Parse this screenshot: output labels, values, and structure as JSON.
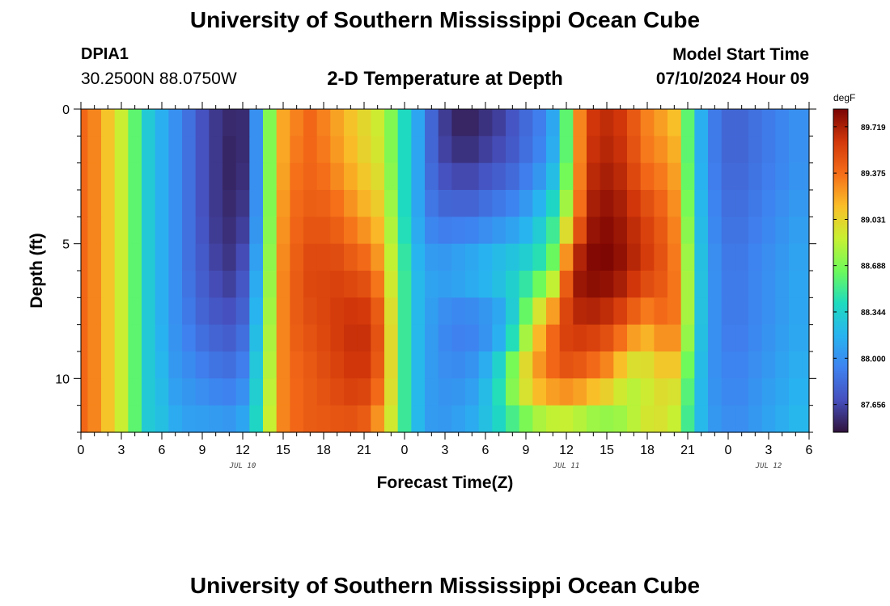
{
  "header": {
    "title": "University of Southern Mississippi Ocean Cube",
    "station_name": "DPIA1",
    "station_coords": "30.2500N  88.0750W",
    "plot_title": "2-D Temperature at Depth",
    "start_label": "Model Start Time",
    "start_value": "07/10/2024 Hour 09"
  },
  "footer": {
    "title": "University of Southern Mississippi Ocean Cube"
  },
  "chart_data": {
    "type": "heatmap",
    "title": "2-D Temperature at Depth",
    "xlabel": "Forecast Time(Z)",
    "ylabel": "Depth (ft)",
    "x_range_hours": [
      0,
      54
    ],
    "y_range_ft": [
      0,
      12
    ],
    "x_tick_labels": [
      "0",
      "3",
      "6",
      "9",
      "12",
      "15",
      "18",
      "21",
      "0",
      "3",
      "6",
      "9",
      "12",
      "15",
      "18",
      "21",
      "0",
      "3",
      "6"
    ],
    "y_ticks": [
      0,
      5,
      10
    ],
    "date_labels": [
      {
        "hour": 12,
        "text": "JUL 10"
      },
      {
        "hour": 36,
        "text": "JUL 11"
      },
      {
        "hour": 51,
        "text": "JUL 12"
      }
    ],
    "colorbar": {
      "unit": "degF",
      "min": 87.45,
      "max": 89.85,
      "labels": [
        "89.719",
        "89.375",
        "89.031",
        "88.688",
        "88.344",
        "88.000",
        "87.656"
      ]
    },
    "x_hours": [
      0,
      1,
      2,
      3,
      4,
      5,
      6,
      7,
      8,
      9,
      10,
      11,
      12,
      13,
      14,
      15,
      16,
      17,
      18,
      19,
      20,
      21,
      22,
      23,
      24,
      25,
      26,
      27,
      28,
      29,
      30,
      31,
      32,
      33,
      34,
      35,
      36,
      37,
      38,
      39,
      40,
      41,
      42,
      43,
      44,
      45,
      46,
      47,
      48,
      49,
      50,
      51,
      52,
      53,
      54
    ],
    "temperature_profiles": [
      {
        "depth_ft": 0,
        "values": [
          89.4,
          89.3,
          89.1,
          88.9,
          88.6,
          88.3,
          88.15,
          88.0,
          87.85,
          87.7,
          87.6,
          87.55,
          87.55,
          88.0,
          88.7,
          89.2,
          89.3,
          89.4,
          89.3,
          89.2,
          89.1,
          89.0,
          88.9,
          88.7,
          88.4,
          88.1,
          87.8,
          87.6,
          87.5,
          87.5,
          87.55,
          87.6,
          87.7,
          87.8,
          87.9,
          88.1,
          88.6,
          89.3,
          89.6,
          89.65,
          89.6,
          89.45,
          89.3,
          89.2,
          89.1,
          88.6,
          88.15,
          87.9,
          87.8,
          87.8,
          87.85,
          87.9,
          87.95,
          88.0,
          88.0
        ]
      },
      {
        "depth_ft": 2,
        "values": [
          89.4,
          89.3,
          89.1,
          88.9,
          88.6,
          88.3,
          88.15,
          88.0,
          87.85,
          87.7,
          87.6,
          87.52,
          87.55,
          88.0,
          88.7,
          89.2,
          89.35,
          89.4,
          89.35,
          89.25,
          89.15,
          89.05,
          88.95,
          88.7,
          88.4,
          88.1,
          87.8,
          87.65,
          87.6,
          87.6,
          87.65,
          87.7,
          87.75,
          87.85,
          87.95,
          88.15,
          88.6,
          89.3,
          89.65,
          89.7,
          89.65,
          89.5,
          89.35,
          89.3,
          89.2,
          88.6,
          88.15,
          87.9,
          87.8,
          87.8,
          87.85,
          87.9,
          87.95,
          88.0,
          88.0
        ]
      },
      {
        "depth_ft": 4,
        "values": [
          89.4,
          89.3,
          89.1,
          88.9,
          88.6,
          88.3,
          88.15,
          88.0,
          87.85,
          87.7,
          87.6,
          87.55,
          87.6,
          88.0,
          88.7,
          89.25,
          89.4,
          89.45,
          89.45,
          89.4,
          89.3,
          89.2,
          89.1,
          88.8,
          88.4,
          88.1,
          87.9,
          87.85,
          87.85,
          87.85,
          87.9,
          87.95,
          88.0,
          88.1,
          88.25,
          88.45,
          88.85,
          89.4,
          89.75,
          89.8,
          89.75,
          89.65,
          89.55,
          89.45,
          89.3,
          88.7,
          88.2,
          87.95,
          87.85,
          87.85,
          87.9,
          87.95,
          88.0,
          88.05,
          88.05
        ]
      },
      {
        "depth_ft": 6,
        "values": [
          89.4,
          89.3,
          89.1,
          88.9,
          88.6,
          88.3,
          88.15,
          88.0,
          87.85,
          87.75,
          87.65,
          87.6,
          87.7,
          88.1,
          88.75,
          89.3,
          89.45,
          89.55,
          89.55,
          89.55,
          89.5,
          89.45,
          89.3,
          88.9,
          88.5,
          88.2,
          88.1,
          88.1,
          88.15,
          88.2,
          88.25,
          88.3,
          88.35,
          88.4,
          88.5,
          88.7,
          89.4,
          89.8,
          89.85,
          89.85,
          89.8,
          89.7,
          89.6,
          89.5,
          89.35,
          88.8,
          88.25,
          88.0,
          87.9,
          87.9,
          87.95,
          88.0,
          88.05,
          88.1,
          88.1
        ]
      },
      {
        "depth_ft": 8,
        "values": [
          89.4,
          89.3,
          89.1,
          88.9,
          88.6,
          88.3,
          88.15,
          88.0,
          87.9,
          87.8,
          87.75,
          87.72,
          87.8,
          88.2,
          88.8,
          89.3,
          89.45,
          89.5,
          89.55,
          89.6,
          89.65,
          89.65,
          89.5,
          89.0,
          88.5,
          88.2,
          88.05,
          87.95,
          87.9,
          87.9,
          87.95,
          88.05,
          88.3,
          88.7,
          89.1,
          89.4,
          89.6,
          89.65,
          89.65,
          89.6,
          89.5,
          89.35,
          89.25,
          89.35,
          89.35,
          88.8,
          88.25,
          88.0,
          87.9,
          87.9,
          87.95,
          88.0,
          88.05,
          88.1,
          88.1
        ]
      },
      {
        "depth_ft": 10,
        "values": [
          89.4,
          89.3,
          89.1,
          88.9,
          88.6,
          88.3,
          88.2,
          88.05,
          88.0,
          87.95,
          87.9,
          87.88,
          87.95,
          88.3,
          88.85,
          89.3,
          89.4,
          89.45,
          89.5,
          89.55,
          89.6,
          89.6,
          89.45,
          89.0,
          88.5,
          88.2,
          88.05,
          88.0,
          88.0,
          88.05,
          88.2,
          88.45,
          88.8,
          89.1,
          89.3,
          89.4,
          89.45,
          89.4,
          89.3,
          89.2,
          89.0,
          88.85,
          88.9,
          89.0,
          89.0,
          88.6,
          88.2,
          88.0,
          87.95,
          87.95,
          88.0,
          88.05,
          88.1,
          88.15,
          88.15
        ]
      },
      {
        "depth_ft": 12,
        "values": [
          89.4,
          89.3,
          89.1,
          88.9,
          88.6,
          88.3,
          88.25,
          88.15,
          88.1,
          88.1,
          88.1,
          88.08,
          88.15,
          88.4,
          88.9,
          89.3,
          89.4,
          89.45,
          89.45,
          89.45,
          89.45,
          89.4,
          89.2,
          88.9,
          88.5,
          88.2,
          88.05,
          88.05,
          88.1,
          88.15,
          88.25,
          88.35,
          88.45,
          88.55,
          88.65,
          88.7,
          88.7,
          88.65,
          88.6,
          88.6,
          88.7,
          88.85,
          88.95,
          88.95,
          88.85,
          88.5,
          88.2,
          88.05,
          88.0,
          88.0,
          88.05,
          88.1,
          88.15,
          88.2,
          88.2
        ]
      }
    ]
  }
}
